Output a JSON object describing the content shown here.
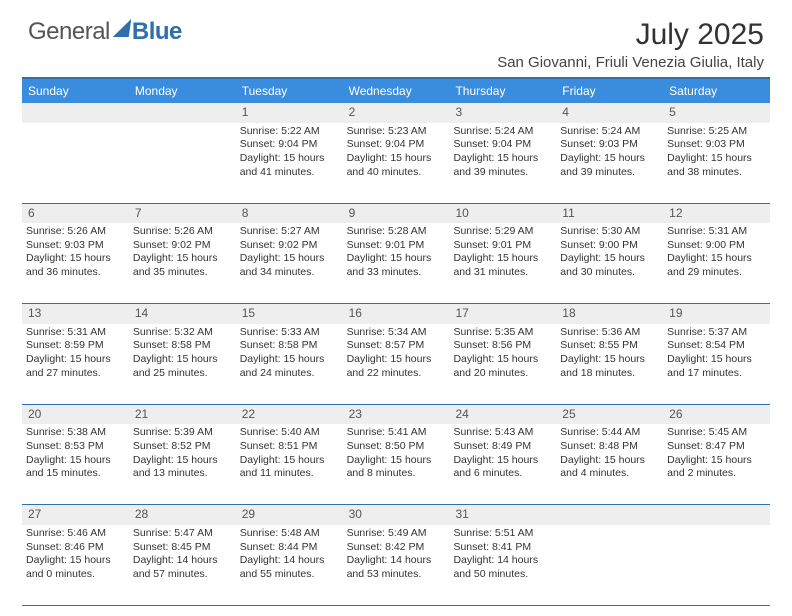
{
  "brand": {
    "part1": "General",
    "part2": "Blue"
  },
  "title": "July 2025",
  "location": "San Giovanni, Friuli Venezia Giulia, Italy",
  "colors": {
    "header_bar": "#3a8dde",
    "rule": "#2f6fab",
    "daynum_bg": "#eeeeee",
    "text": "#333333",
    "brand_blue": "#2f6fab"
  },
  "fonts": {
    "title_size": 30,
    "location_size": 15,
    "dow_size": 12,
    "body_size": 10.5
  },
  "dows": [
    "Sunday",
    "Monday",
    "Tuesday",
    "Wednesday",
    "Thursday",
    "Friday",
    "Saturday"
  ],
  "weeks": [
    {
      "nums": [
        "",
        "",
        "1",
        "2",
        "3",
        "4",
        "5"
      ],
      "cells": [
        null,
        null,
        {
          "sunrise": "Sunrise: 5:22 AM",
          "sunset": "Sunset: 9:04 PM",
          "dl1": "Daylight: 15 hours",
          "dl2": "and 41 minutes."
        },
        {
          "sunrise": "Sunrise: 5:23 AM",
          "sunset": "Sunset: 9:04 PM",
          "dl1": "Daylight: 15 hours",
          "dl2": "and 40 minutes."
        },
        {
          "sunrise": "Sunrise: 5:24 AM",
          "sunset": "Sunset: 9:04 PM",
          "dl1": "Daylight: 15 hours",
          "dl2": "and 39 minutes."
        },
        {
          "sunrise": "Sunrise: 5:24 AM",
          "sunset": "Sunset: 9:03 PM",
          "dl1": "Daylight: 15 hours",
          "dl2": "and 39 minutes."
        },
        {
          "sunrise": "Sunrise: 5:25 AM",
          "sunset": "Sunset: 9:03 PM",
          "dl1": "Daylight: 15 hours",
          "dl2": "and 38 minutes."
        }
      ]
    },
    {
      "nums": [
        "6",
        "7",
        "8",
        "9",
        "10",
        "11",
        "12"
      ],
      "cells": [
        {
          "sunrise": "Sunrise: 5:26 AM",
          "sunset": "Sunset: 9:03 PM",
          "dl1": "Daylight: 15 hours",
          "dl2": "and 36 minutes."
        },
        {
          "sunrise": "Sunrise: 5:26 AM",
          "sunset": "Sunset: 9:02 PM",
          "dl1": "Daylight: 15 hours",
          "dl2": "and 35 minutes."
        },
        {
          "sunrise": "Sunrise: 5:27 AM",
          "sunset": "Sunset: 9:02 PM",
          "dl1": "Daylight: 15 hours",
          "dl2": "and 34 minutes."
        },
        {
          "sunrise": "Sunrise: 5:28 AM",
          "sunset": "Sunset: 9:01 PM",
          "dl1": "Daylight: 15 hours",
          "dl2": "and 33 minutes."
        },
        {
          "sunrise": "Sunrise: 5:29 AM",
          "sunset": "Sunset: 9:01 PM",
          "dl1": "Daylight: 15 hours",
          "dl2": "and 31 minutes."
        },
        {
          "sunrise": "Sunrise: 5:30 AM",
          "sunset": "Sunset: 9:00 PM",
          "dl1": "Daylight: 15 hours",
          "dl2": "and 30 minutes."
        },
        {
          "sunrise": "Sunrise: 5:31 AM",
          "sunset": "Sunset: 9:00 PM",
          "dl1": "Daylight: 15 hours",
          "dl2": "and 29 minutes."
        }
      ]
    },
    {
      "nums": [
        "13",
        "14",
        "15",
        "16",
        "17",
        "18",
        "19"
      ],
      "cells": [
        {
          "sunrise": "Sunrise: 5:31 AM",
          "sunset": "Sunset: 8:59 PM",
          "dl1": "Daylight: 15 hours",
          "dl2": "and 27 minutes."
        },
        {
          "sunrise": "Sunrise: 5:32 AM",
          "sunset": "Sunset: 8:58 PM",
          "dl1": "Daylight: 15 hours",
          "dl2": "and 25 minutes."
        },
        {
          "sunrise": "Sunrise: 5:33 AM",
          "sunset": "Sunset: 8:58 PM",
          "dl1": "Daylight: 15 hours",
          "dl2": "and 24 minutes."
        },
        {
          "sunrise": "Sunrise: 5:34 AM",
          "sunset": "Sunset: 8:57 PM",
          "dl1": "Daylight: 15 hours",
          "dl2": "and 22 minutes."
        },
        {
          "sunrise": "Sunrise: 5:35 AM",
          "sunset": "Sunset: 8:56 PM",
          "dl1": "Daylight: 15 hours",
          "dl2": "and 20 minutes."
        },
        {
          "sunrise": "Sunrise: 5:36 AM",
          "sunset": "Sunset: 8:55 PM",
          "dl1": "Daylight: 15 hours",
          "dl2": "and 18 minutes."
        },
        {
          "sunrise": "Sunrise: 5:37 AM",
          "sunset": "Sunset: 8:54 PM",
          "dl1": "Daylight: 15 hours",
          "dl2": "and 17 minutes."
        }
      ]
    },
    {
      "nums": [
        "20",
        "21",
        "22",
        "23",
        "24",
        "25",
        "26"
      ],
      "cells": [
        {
          "sunrise": "Sunrise: 5:38 AM",
          "sunset": "Sunset: 8:53 PM",
          "dl1": "Daylight: 15 hours",
          "dl2": "and 15 minutes."
        },
        {
          "sunrise": "Sunrise: 5:39 AM",
          "sunset": "Sunset: 8:52 PM",
          "dl1": "Daylight: 15 hours",
          "dl2": "and 13 minutes."
        },
        {
          "sunrise": "Sunrise: 5:40 AM",
          "sunset": "Sunset: 8:51 PM",
          "dl1": "Daylight: 15 hours",
          "dl2": "and 11 minutes."
        },
        {
          "sunrise": "Sunrise: 5:41 AM",
          "sunset": "Sunset: 8:50 PM",
          "dl1": "Daylight: 15 hours",
          "dl2": "and 8 minutes."
        },
        {
          "sunrise": "Sunrise: 5:43 AM",
          "sunset": "Sunset: 8:49 PM",
          "dl1": "Daylight: 15 hours",
          "dl2": "and 6 minutes."
        },
        {
          "sunrise": "Sunrise: 5:44 AM",
          "sunset": "Sunset: 8:48 PM",
          "dl1": "Daylight: 15 hours",
          "dl2": "and 4 minutes."
        },
        {
          "sunrise": "Sunrise: 5:45 AM",
          "sunset": "Sunset: 8:47 PM",
          "dl1": "Daylight: 15 hours",
          "dl2": "and 2 minutes."
        }
      ]
    },
    {
      "nums": [
        "27",
        "28",
        "29",
        "30",
        "31",
        "",
        ""
      ],
      "cells": [
        {
          "sunrise": "Sunrise: 5:46 AM",
          "sunset": "Sunset: 8:46 PM",
          "dl1": "Daylight: 15 hours",
          "dl2": "and 0 minutes."
        },
        {
          "sunrise": "Sunrise: 5:47 AM",
          "sunset": "Sunset: 8:45 PM",
          "dl1": "Daylight: 14 hours",
          "dl2": "and 57 minutes."
        },
        {
          "sunrise": "Sunrise: 5:48 AM",
          "sunset": "Sunset: 8:44 PM",
          "dl1": "Daylight: 14 hours",
          "dl2": "and 55 minutes."
        },
        {
          "sunrise": "Sunrise: 5:49 AM",
          "sunset": "Sunset: 8:42 PM",
          "dl1": "Daylight: 14 hours",
          "dl2": "and 53 minutes."
        },
        {
          "sunrise": "Sunrise: 5:51 AM",
          "sunset": "Sunset: 8:41 PM",
          "dl1": "Daylight: 14 hours",
          "dl2": "and 50 minutes."
        },
        null,
        null
      ]
    }
  ]
}
